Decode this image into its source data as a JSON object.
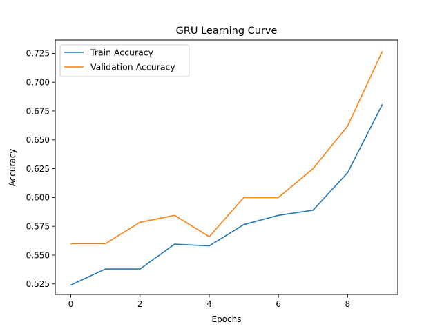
{
  "chart_data": {
    "type": "line",
    "title": "GRU Learning Curve",
    "xlabel": "Epochs",
    "ylabel": "Accuracy",
    "x": [
      0,
      1,
      2,
      3,
      4,
      5,
      6,
      7,
      8,
      9
    ],
    "series": [
      {
        "name": "Train Accuracy",
        "color": "#1f77b4",
        "values": [
          0.524,
          0.538,
          0.538,
          0.5595,
          0.558,
          0.5765,
          0.5845,
          0.589,
          0.6215,
          0.6805
        ]
      },
      {
        "name": "Validation Accuracy",
        "color": "#ff7f0e",
        "values": [
          0.56,
          0.56,
          0.5785,
          0.5845,
          0.566,
          0.6,
          0.6,
          0.625,
          0.662,
          0.7265
        ]
      }
    ],
    "xlim": [
      -0.45,
      9.45
    ],
    "ylim": [
      0.5159,
      0.7366
    ],
    "xticks": [
      0,
      2,
      4,
      6,
      8
    ],
    "xtick_labels": [
      "0",
      "2",
      "4",
      "6",
      "8"
    ],
    "yticks": [
      0.525,
      0.55,
      0.575,
      0.6,
      0.625,
      0.65,
      0.675,
      0.7,
      0.725
    ],
    "ytick_labels": [
      "0.525",
      "0.550",
      "0.575",
      "0.600",
      "0.625",
      "0.650",
      "0.675",
      "0.700",
      "0.725"
    ],
    "grid": false,
    "legend_position": "upper-left"
  }
}
